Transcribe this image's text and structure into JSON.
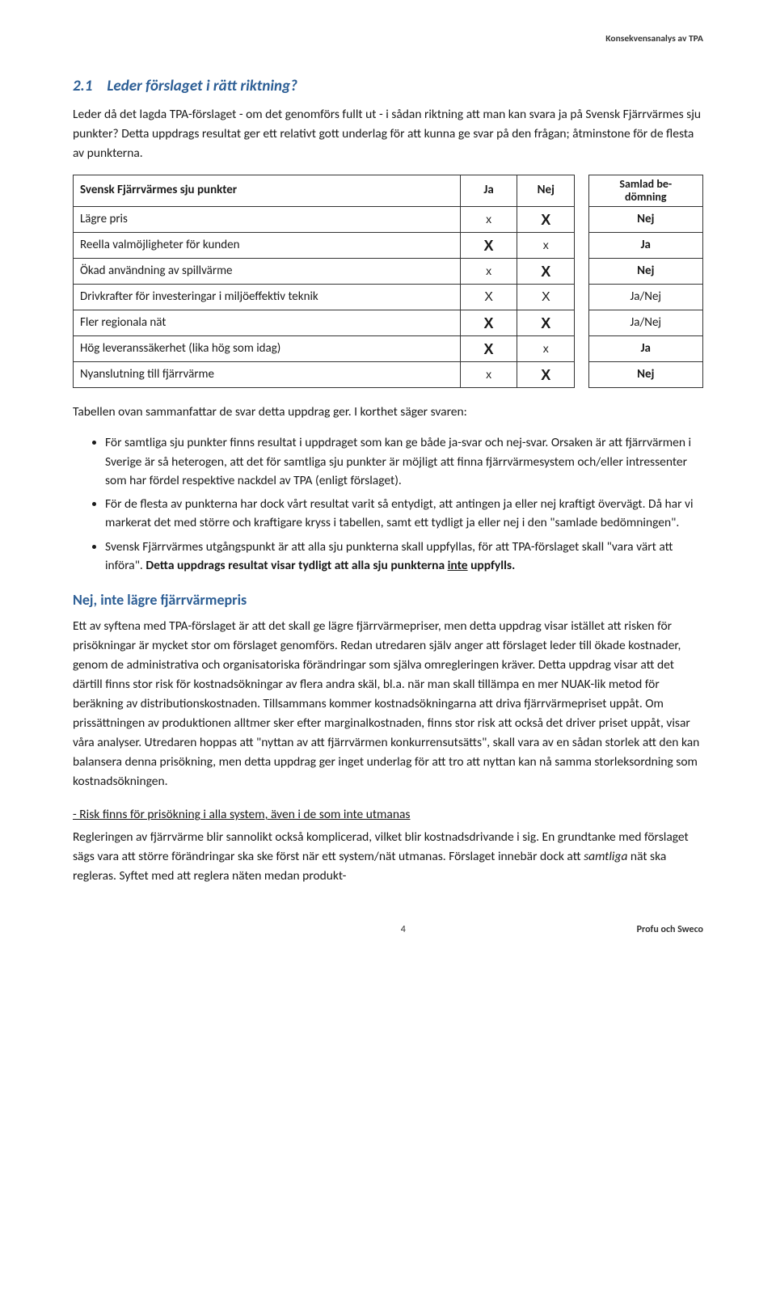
{
  "header_right": "Konsekvensanalys av TPA",
  "section_num": "2.1",
  "section_title": "Leder förslaget i rätt riktning?",
  "intro": "Leder då det lagda TPA-förslaget - om det genomförs fullt ut - i sådan riktning att man kan svara ja på Svensk Fjärrvärmes sju punkter? Detta uppdrags resultat ger ett relativt gott underlag för att kunna ge svar på den frågan; åtminstone för de flesta av punkterna.",
  "table": {
    "h_label": "Svensk Fjärrvärmes sju punkter",
    "h_ja": "Ja",
    "h_nej": "Nej",
    "h_samlad_l1": "Samlad be-",
    "h_samlad_l2": "dömning",
    "rows": [
      {
        "label": "Lägre pris",
        "ja": "x",
        "nej": "X",
        "ja_cls": "x-small",
        "nej_cls": "x-big",
        "sam": "Nej",
        "sam_cls": "bold"
      },
      {
        "label": "Reella valmöjligheter för kunden",
        "ja": "X",
        "nej": "x",
        "ja_cls": "x-big",
        "nej_cls": "x-small",
        "sam": "Ja",
        "sam_cls": "bold"
      },
      {
        "label": "Ökad användning av spillvärme",
        "ja": "x",
        "nej": "X",
        "ja_cls": "x-small",
        "nej_cls": "x-big",
        "sam": "Nej",
        "sam_cls": "bold"
      },
      {
        "label": "Drivkrafter för investeringar i miljöeffektiv teknik",
        "ja": "X",
        "nej": "X",
        "ja_cls": "x-med",
        "nej_cls": "x-med",
        "sam": "Ja/Nej",
        "sam_cls": "jn-small"
      },
      {
        "label": "Fler regionala nät",
        "ja": "X",
        "nej": "X",
        "ja_cls": "x-big",
        "nej_cls": "x-big",
        "sam": "Ja/Nej",
        "sam_cls": "jn-small"
      },
      {
        "label": "Hög leveranssäkerhet (lika hög som idag)",
        "ja": "X",
        "nej": "x",
        "ja_cls": "x-big",
        "nej_cls": "x-small",
        "sam": "Ja",
        "sam_cls": "bold"
      },
      {
        "label": "Nyanslutning till fjärrvärme",
        "ja": "x",
        "nej": "X",
        "ja_cls": "x-small",
        "nej_cls": "x-big",
        "sam": "Nej",
        "sam_cls": "bold"
      }
    ]
  },
  "after_table": "Tabellen ovan sammanfattar de svar detta uppdrag ger. I korthet säger svaren:",
  "bullets": {
    "b1": "För samtliga sju punkter finns resultat i uppdraget som kan ge både ja-svar och nej-svar. Orsaken är att fjärrvärmen i Sverige är så heterogen, att det för samtliga sju punkter är möjligt att finna fjärrvärmesystem och/eller intressenter som har fördel respektive nackdel av TPA (enligt förslaget).",
    "b2": "För de flesta av punkterna har dock vårt resultat varit så entydigt, att antingen ja eller nej kraftigt övervägt. Då har vi markerat det med större och kraftigare kryss i tabellen, samt ett tydligt ja eller nej i den \"samlade bedömningen\".",
    "b3_pre": "Svensk Fjärrvärmes utgångspunkt är att alla sju punkterna skall uppfyllas, för att TPA-förslaget skall \"vara värt att införa\". ",
    "b3_bold_pre": "Detta uppdrags resultat visar tydligt att alla sju punkterna ",
    "b3_bold_u": "inte",
    "b3_bold_post": " uppfylls."
  },
  "h3": "Nej, inte lägre fjärrvärmepris",
  "p_long": "Ett av syftena med TPA-förslaget är att det skall ge lägre fjärrvärmepriser, men detta uppdrag visar istället att risken för prisökningar är mycket stor om förslaget genomförs. Redan utredaren själv anger att förslaget leder till ökade kostnader, genom de administrativa och organisatoriska förändringar som själva omregleringen kräver. Detta uppdrag visar att det därtill finns stor risk för kostnadsökningar av flera andra skäl, bl.a. när man skall tillämpa en mer NUAK-lik metod för beräkning av distributionskostnaden. Tillsammans kommer kostnadsökningarna att driva fjärrvärmepriset uppåt. Om prissättningen av produktionen alltmer sker efter marginalkostnaden, finns stor risk att också det driver priset uppåt, visar våra analyser. Utredaren hoppas att \"nyttan av att fjärrvärmen konkurrensutsätts\", skall vara av en sådan storlek att den kan balansera denna prisökning, men detta uppdrag ger inget underlag för att tro att nyttan kan nå samma storleksordning som kostnadsökningen.",
  "sub_u": "- Risk finns för prisökning i alla system, även i de som inte utmanas",
  "p_last_a": "Regleringen av fjärrvärme blir sannolikt också komplicerad, vilket blir kostnadsdrivande i sig. En grundtanke med förslaget sägs vara att större förändringar ska ske först när ett system/nät utmanas. Förslaget innebär dock att ",
  "p_last_it": "samtliga",
  "p_last_b": " nät ska regleras. Syftet med att reglera näten medan produkt-",
  "page_num": "4",
  "footer_right": "Profu och Sweco"
}
